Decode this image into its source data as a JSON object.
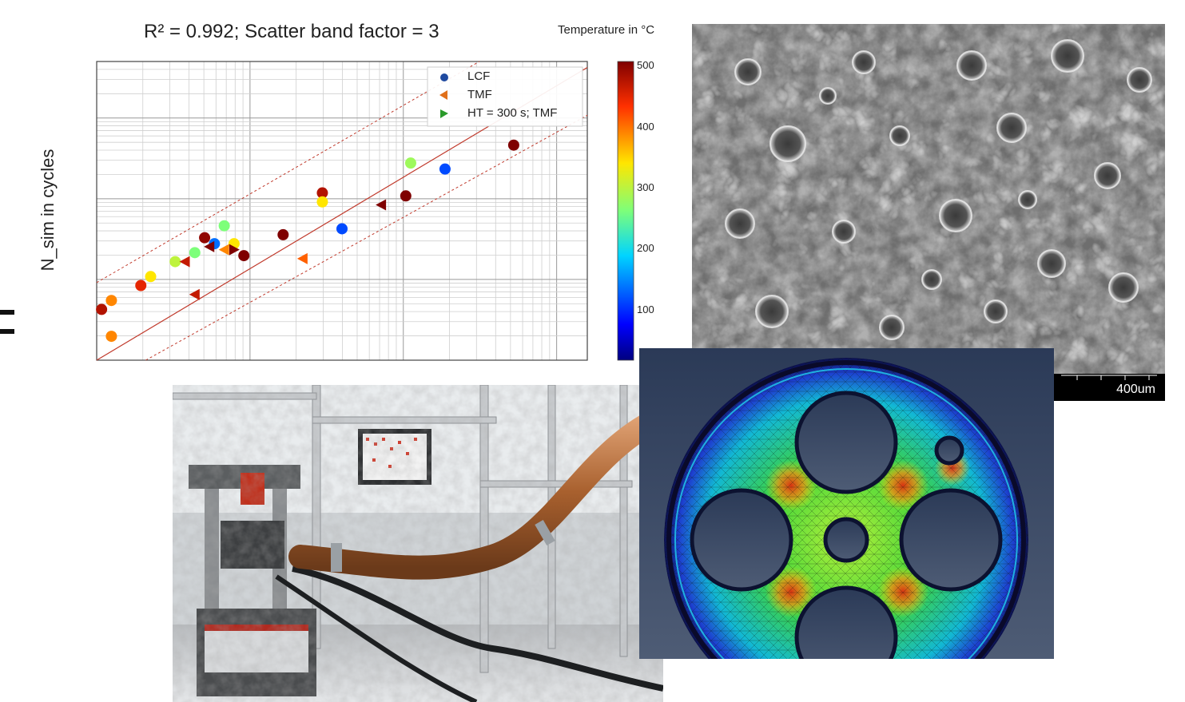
{
  "chart": {
    "title": "R² = 0.992; Scatter band factor = 3",
    "y_label": "N_sim in cycles",
    "colorbar_title": "Temperature in °C",
    "colorbar_ticks": [
      "500",
      "400",
      "300",
      "200",
      "100"
    ]
  },
  "chart_data": {
    "type": "scatter",
    "title": "R² = 0.992; Scatter band factor = 3",
    "xlabel": "",
    "ylabel": "N_sim in cycles",
    "x_scale": "log",
    "y_scale": "log",
    "colorbar": {
      "label": "Temperature in °C",
      "range": [
        0,
        500
      ],
      "ticks": [
        100,
        200,
        300,
        400,
        500
      ]
    },
    "legend": {
      "position": "top-right",
      "entries": [
        "LCF",
        "TMF",
        "HT = 300 s; TMF"
      ]
    },
    "series": [
      {
        "name": "LCF",
        "marker": "circle",
        "points": [
          {
            "x": 0.01,
            "y": 0.17,
            "temp": 470
          },
          {
            "x": 0.03,
            "y": 0.2,
            "temp": 380
          },
          {
            "x": 0.03,
            "y": 0.08,
            "temp": 380
          },
          {
            "x": 0.09,
            "y": 0.25,
            "temp": 440
          },
          {
            "x": 0.11,
            "y": 0.28,
            "temp": 330
          },
          {
            "x": 0.16,
            "y": 0.33,
            "temp": 290
          },
          {
            "x": 0.2,
            "y": 0.36,
            "temp": 250
          },
          {
            "x": 0.22,
            "y": 0.41,
            "temp": 490
          },
          {
            "x": 0.24,
            "y": 0.39,
            "temp": 120
          },
          {
            "x": 0.26,
            "y": 0.45,
            "temp": 250
          },
          {
            "x": 0.28,
            "y": 0.39,
            "temp": 330
          },
          {
            "x": 0.3,
            "y": 0.35,
            "temp": 500
          },
          {
            "x": 0.38,
            "y": 0.42,
            "temp": 500
          },
          {
            "x": 0.46,
            "y": 0.56,
            "temp": 470
          },
          {
            "x": 0.46,
            "y": 0.53,
            "temp": 330
          },
          {
            "x": 0.5,
            "y": 0.44,
            "temp": 100
          },
          {
            "x": 0.64,
            "y": 0.66,
            "temp": 270
          },
          {
            "x": 0.63,
            "y": 0.55,
            "temp": 500
          },
          {
            "x": 0.71,
            "y": 0.64,
            "temp": 100
          },
          {
            "x": 0.85,
            "y": 0.72,
            "temp": 500
          }
        ]
      },
      {
        "name": "TMF",
        "marker": "triangle-left",
        "points": [
          {
            "x": 0.18,
            "y": 0.33,
            "temp": 460
          },
          {
            "x": 0.2,
            "y": 0.22,
            "temp": 460
          },
          {
            "x": 0.23,
            "y": 0.38,
            "temp": 500
          },
          {
            "x": 0.26,
            "y": 0.37,
            "temp": 380
          },
          {
            "x": 0.42,
            "y": 0.34,
            "temp": 400
          },
          {
            "x": 0.58,
            "y": 0.52,
            "temp": 500
          }
        ]
      },
      {
        "name": "HT = 300 s; TMF",
        "marker": "triangle-right",
        "points": [
          {
            "x": 0.28,
            "y": 0.37,
            "temp": 500
          }
        ]
      }
    ]
  },
  "sem": {
    "scale_label": "400um"
  }
}
